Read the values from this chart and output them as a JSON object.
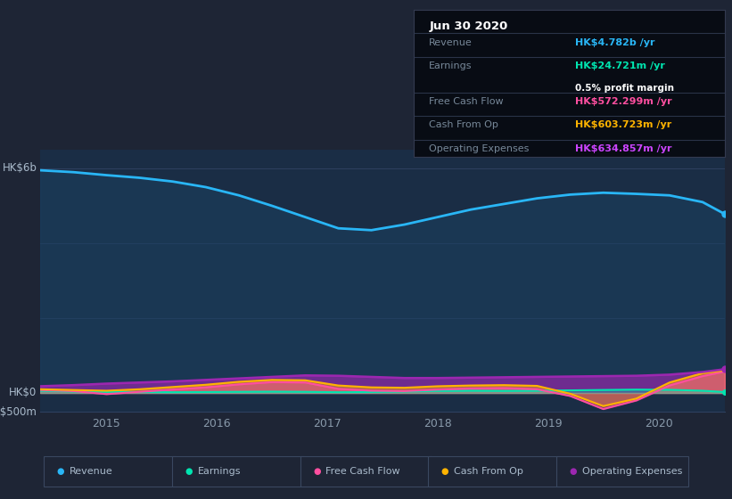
{
  "bg_color": "#1e2535",
  "plot_bg_color": "#1a2d45",
  "x_years": [
    2014.4,
    2014.7,
    2015.0,
    2015.3,
    2015.6,
    2015.9,
    2016.2,
    2016.5,
    2016.8,
    2017.1,
    2017.4,
    2017.7,
    2018.0,
    2018.3,
    2018.6,
    2018.9,
    2019.2,
    2019.5,
    2019.8,
    2020.1,
    2020.4,
    2020.6
  ],
  "revenue": [
    5950,
    5900,
    5820,
    5750,
    5650,
    5500,
    5280,
    5000,
    4700,
    4400,
    4350,
    4500,
    4700,
    4900,
    5050,
    5200,
    5300,
    5350,
    5320,
    5280,
    5100,
    4782
  ],
  "earnings": [
    60,
    40,
    30,
    25,
    20,
    25,
    30,
    35,
    30,
    20,
    25,
    40,
    55,
    60,
    55,
    60,
    70,
    80,
    90,
    85,
    60,
    25
  ],
  "free_cash_flow": [
    80,
    50,
    -30,
    30,
    90,
    150,
    230,
    290,
    280,
    110,
    60,
    50,
    90,
    120,
    130,
    100,
    -80,
    -430,
    -200,
    200,
    450,
    572
  ],
  "cash_from_op": [
    100,
    80,
    60,
    100,
    160,
    220,
    300,
    350,
    340,
    200,
    150,
    140,
    180,
    200,
    210,
    190,
    -20,
    -350,
    -150,
    280,
    530,
    604
  ],
  "operating_expenses": [
    180,
    210,
    250,
    280,
    310,
    350,
    390,
    430,
    470,
    460,
    430,
    400,
    400,
    410,
    420,
    430,
    440,
    450,
    460,
    490,
    560,
    635
  ],
  "revenue_color": "#29b6f6",
  "earnings_color": "#00e5b0",
  "fcf_color": "#ff4fa0",
  "cashop_color": "#ffb300",
  "opex_color": "#9c27b0",
  "revenue_fill": "#1a4060",
  "info_box": {
    "title": "Jun 30 2020",
    "revenue_label": "Revenue",
    "revenue_value": "HK$4.782b",
    "revenue_color": "#29b6f6",
    "earnings_label": "Earnings",
    "earnings_value": "HK$24.721m",
    "earnings_color": "#00e5b0",
    "margin_text": "0.5% profit margin",
    "fcf_label": "Free Cash Flow",
    "fcf_value": "HK$572.299m",
    "fcf_color": "#ff4fa0",
    "cashop_label": "Cash From Op",
    "cashop_value": "HK$603.723m",
    "cashop_color": "#ffb300",
    "opex_label": "Operating Expenses",
    "opex_value": "HK$634.857m",
    "opex_color": "#cc44ff"
  },
  "legend_items": [
    {
      "label": "Revenue",
      "color": "#29b6f6"
    },
    {
      "label": "Earnings",
      "color": "#00e5b0"
    },
    {
      "label": "Free Cash Flow",
      "color": "#ff4fa0"
    },
    {
      "label": "Cash From Op",
      "color": "#ffb300"
    },
    {
      "label": "Operating Expenses",
      "color": "#9c27b0"
    }
  ],
  "ylabel_top": "HK$6b",
  "ylabel_zero": "HK$0",
  "ylabel_neg": "-HK$500m"
}
